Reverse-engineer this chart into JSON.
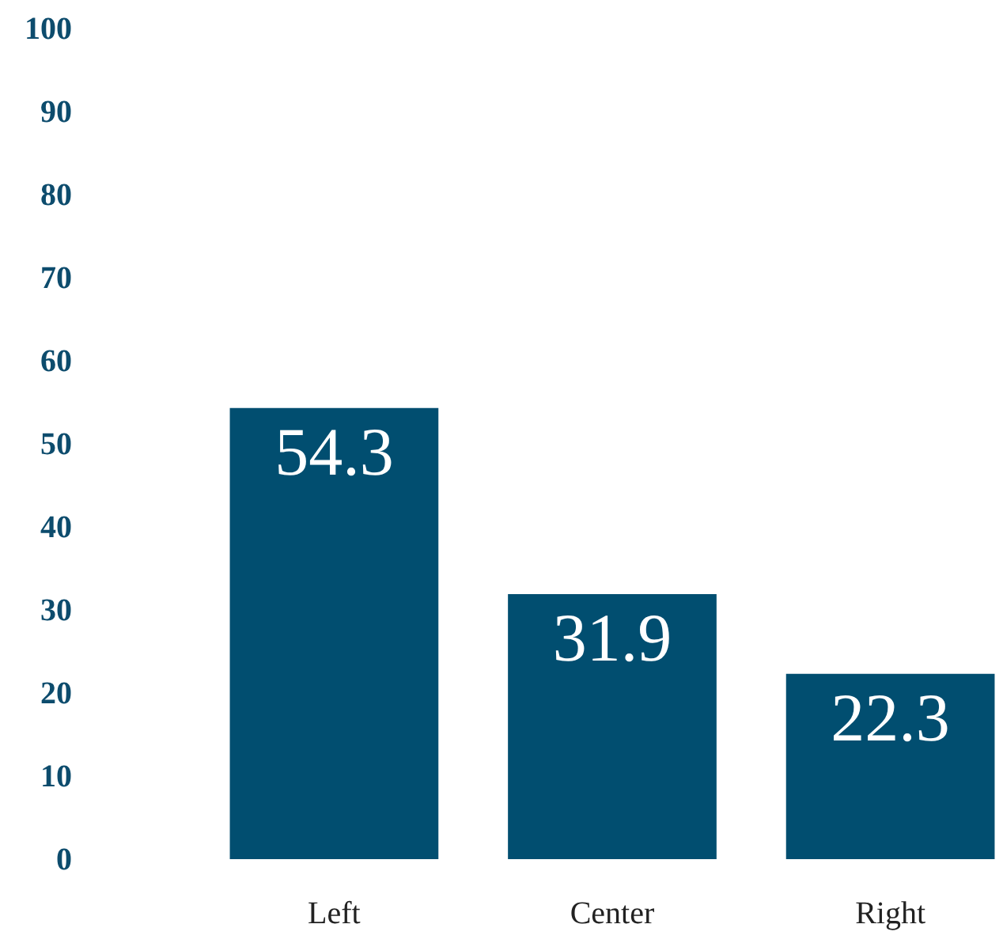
{
  "chart_data": {
    "type": "bar",
    "categories": [
      "Left",
      "Center",
      "Right"
    ],
    "values": [
      54.3,
      31.9,
      22.3
    ],
    "color": "#014e70",
    "ylim": [
      0,
      100
    ],
    "yticks": [
      0,
      10,
      20,
      30,
      40,
      50,
      60,
      70,
      80,
      90,
      100
    ],
    "data_labels": true
  }
}
